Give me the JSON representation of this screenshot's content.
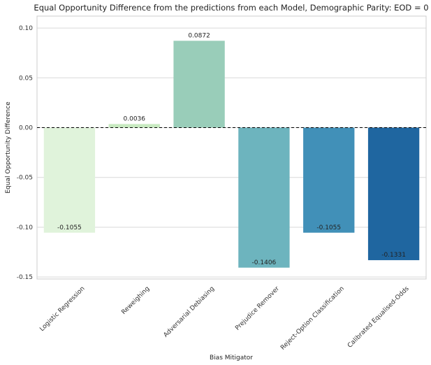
{
  "chart_data": {
    "type": "bar",
    "title": "Equal Opportunity Difference from the predictions from each Model, Demographic Parity: EOD = 0",
    "xlabel": "Bias Mitigator",
    "ylabel": "Equal Opportunity Difference",
    "ylim": [
      -0.152,
      0.112
    ],
    "yticks": [
      0.1,
      0.05,
      0.0,
      -0.05,
      -0.1,
      -0.15
    ],
    "ytick_labels": [
      "0.10",
      "0.05",
      "0.00",
      "-0.05",
      "-0.10",
      "-0.15"
    ],
    "categories": [
      "Logistic Regression",
      "Reweighing",
      "Adversarial Debiasing",
      "Prejudice Remover",
      "Reject-Option Classification",
      "Calibrated Equalised-Odds"
    ],
    "values": [
      -0.1055,
      0.0036,
      0.0872,
      -0.1406,
      -0.1055,
      -0.1331
    ],
    "value_labels": [
      "-0.1055",
      "0.0036",
      "0.0872",
      "-0.1406",
      "-0.1055",
      "-0.1331"
    ],
    "colors": [
      "#e0f3db",
      "#c7e9c0",
      "#99cdb9",
      "#6db4be",
      "#4190b8",
      "#1f66a0"
    ],
    "reference_line": 0,
    "grid": "horizontal"
  }
}
